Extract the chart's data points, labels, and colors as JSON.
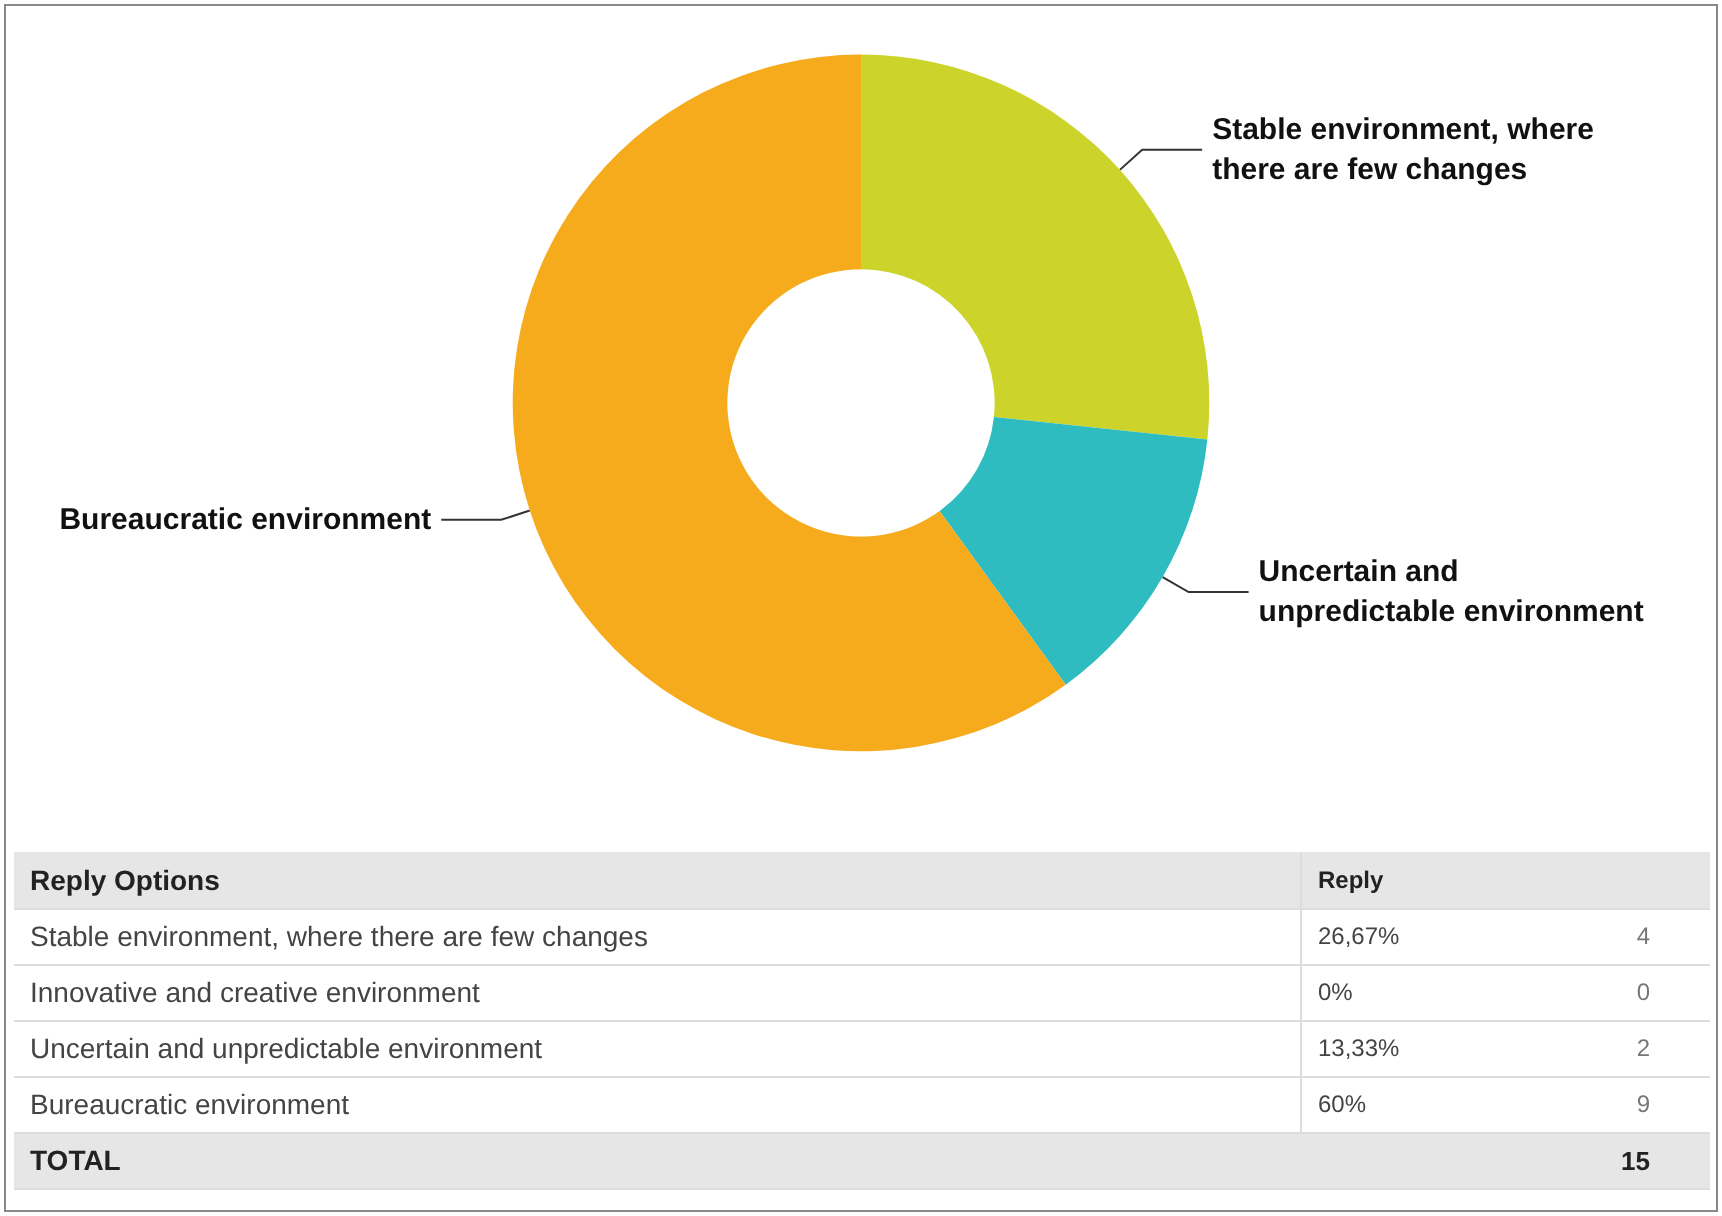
{
  "chart_data": {
    "type": "donut",
    "categories": [
      "Stable environment, where there are few changes",
      "Innovative and creative environment",
      "Uncertain and unpredictable environment",
      "Bureaucratic environment"
    ],
    "values": [
      26.67,
      0,
      13.33,
      60
    ],
    "colors": [
      "#ccd42c",
      "#8e5fb0",
      "#2ebcc0",
      "#f5ab1c"
    ],
    "legend": false,
    "annotations": [
      "Reply Options",
      "Reply",
      "26,67%",
      "4",
      "0%",
      "0",
      "13,33%",
      "2",
      "60%",
      "9",
      "TOTAL",
      "15"
    ]
  }
}
